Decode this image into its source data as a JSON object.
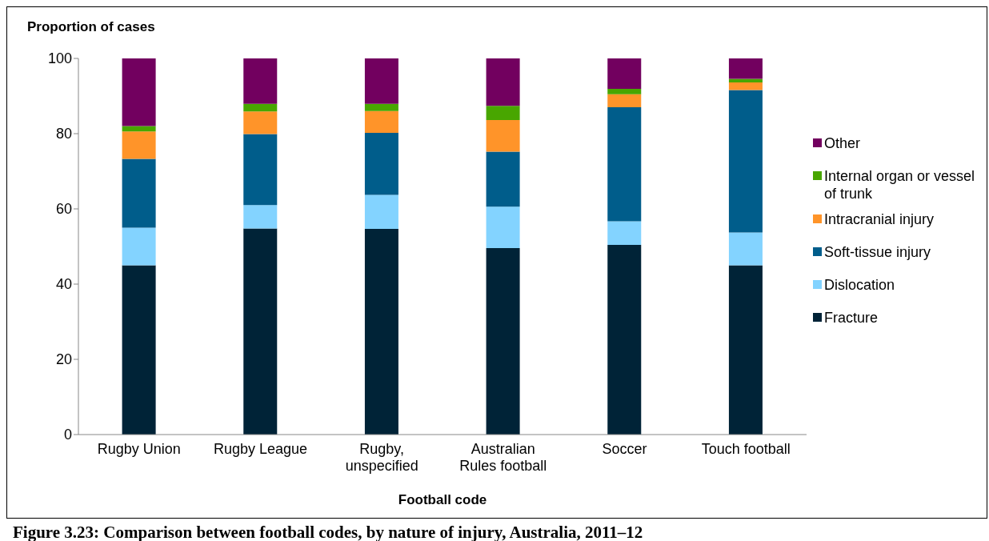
{
  "chart_data": {
    "type": "bar",
    "title": "Figure 3.23: Comparison between football codes, by nature of injury, Australia, 2011–12",
    "ylabel": "Proportion of cases",
    "xlabel": "Football code",
    "categories": [
      "Rugby Union",
      "Rugby League",
      "Rugby, unspecified",
      "Australian Rules football",
      "Soccer",
      "Touch football"
    ],
    "stacked": true,
    "ylim": [
      0,
      100
    ],
    "yticks": [
      0,
      20,
      40,
      60,
      80,
      100
    ],
    "grid": false,
    "legend": "right",
    "series": [
      {
        "name": "Fracture",
        "color": "#002337",
        "values": [
          45.0,
          54.8,
          54.7,
          49.6,
          50.4,
          45.0
        ]
      },
      {
        "name": "Dislocation",
        "color": "#83d3ff",
        "values": [
          10.0,
          6.2,
          9.0,
          11.0,
          6.3,
          8.7
        ]
      },
      {
        "name": "Soft-tissue injury",
        "color": "#005d8b",
        "values": [
          18.3,
          18.9,
          16.5,
          14.6,
          30.3,
          37.9
        ]
      },
      {
        "name": "Intracranial injury",
        "color": "#ff9429",
        "values": [
          7.3,
          6.0,
          5.8,
          8.4,
          3.5,
          2.0
        ]
      },
      {
        "name": "Internal organ or vessel of trunk",
        "color": "#48a600",
        "values": [
          1.4,
          2.0,
          1.9,
          3.8,
          1.4,
          1.0
        ]
      },
      {
        "name": "Other",
        "color": "#72005f",
        "values": [
          18.0,
          12.1,
          12.1,
          12.6,
          8.1,
          5.4
        ]
      }
    ]
  }
}
